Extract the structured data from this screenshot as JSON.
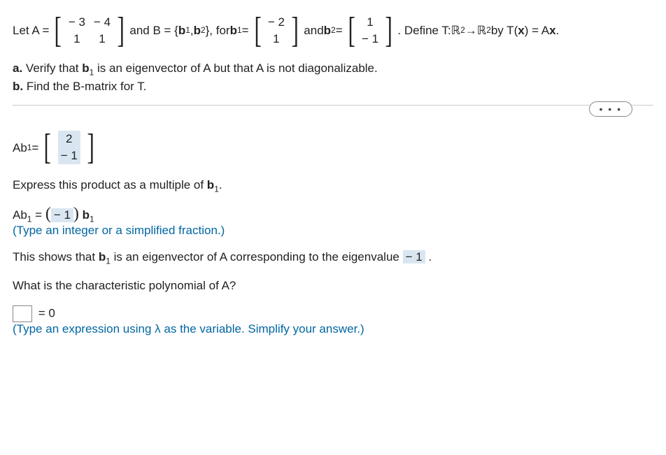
{
  "problem": {
    "letA": "Let A =",
    "A_matrix": {
      "r1c1": "− 3",
      "r1c2": "− 4",
      "r2c1": "1",
      "r2c2": "1"
    },
    "andB": "and B = {",
    "b1_lbl": "b",
    "b1_sub": "1",
    "comma": ", ",
    "b2_lbl": "b",
    "b2_sub": "2",
    "closeB_for": "}, for ",
    "b1_eq": " =",
    "b1_vec": {
      "r1": "− 2",
      "r2": "1"
    },
    "and_b2": " and ",
    "b2_eq": " =",
    "b2_vec": {
      "r1": "1",
      "r2": "− 1"
    },
    "defineT": ". Define T:  ",
    "R2a": "ℝ",
    "sup2a": "2",
    "arrow": "→",
    "R2b": "ℝ",
    "sup2b": "2",
    "byT": " by T(",
    "x_bold": "x",
    "byT2": ") = A",
    "x_bold2": "x",
    "period": "."
  },
  "parts": {
    "a_label": "a.",
    "a_text1": " Verify that ",
    "a_b1": "b",
    "a_b1_sub": "1",
    "a_text2": " is an eigenvector of A but that A is not diagonalizable.",
    "b_label": "b.",
    "b_text": " Find the B-matrix for T."
  },
  "dots": "• • •",
  "step1": {
    "Ab1_lbl": "Ab",
    "Ab1_sub": "1",
    "eq": " =",
    "vec": {
      "r1": "2",
      "r2": "− 1"
    }
  },
  "step2": {
    "text1": "Express this product as a multiple of ",
    "b1": "b",
    "b1_sub": "1",
    "period": "."
  },
  "step3": {
    "Ab1_lbl": "Ab",
    "Ab1_sub": "1",
    "eq": " = ",
    "ans": "− 1",
    "b1": "b",
    "b1_sub": "1"
  },
  "hint1": "(Type an integer or a simplified fraction.)",
  "step4": {
    "text1": "This shows that ",
    "b1": "b",
    "b1_sub": "1",
    "text2": " is an eigenvector of A corresponding to the eigenvalue ",
    "ans": "− 1",
    "period": "."
  },
  "step5": "What is the characteristic polynomial of A?",
  "step6": {
    "eq0": "= 0"
  },
  "hint2": "(Type an expression using λ as the variable. Simplify your answer.)",
  "colors": {
    "hint": "#0066a1",
    "answer_bg": "#d9e6f2"
  }
}
